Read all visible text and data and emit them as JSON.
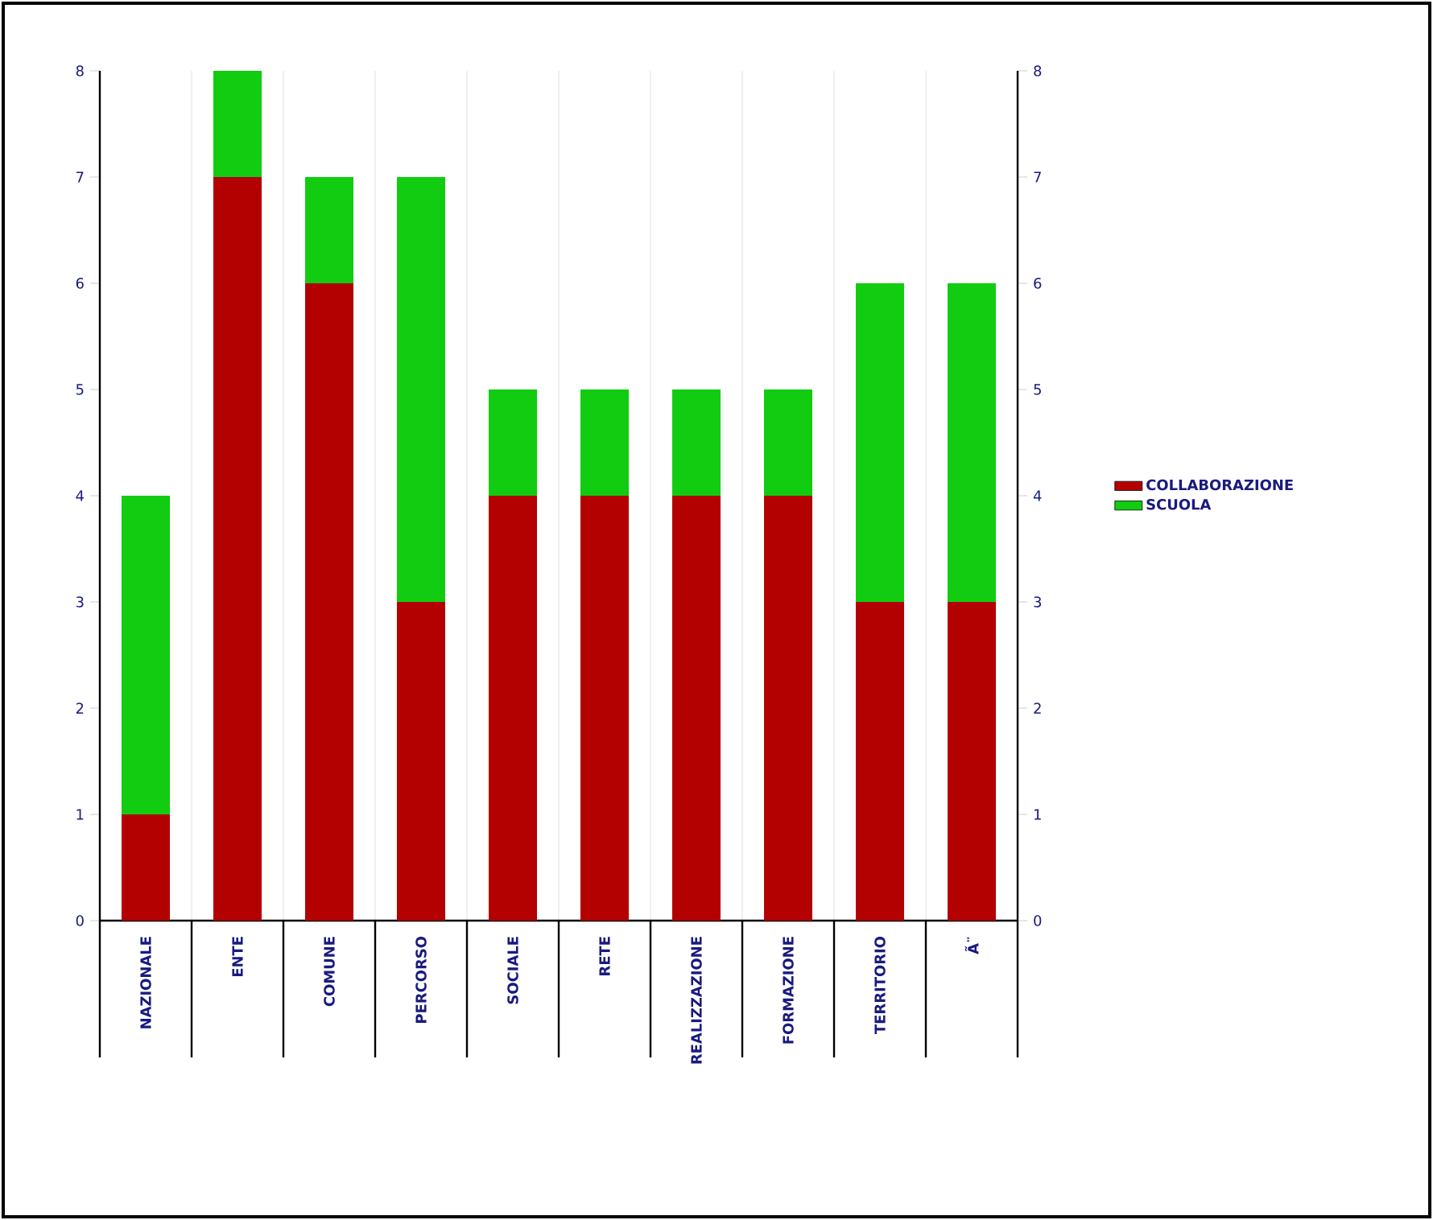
{
  "chart_data": {
    "type": "bar",
    "stacked": true,
    "categories": [
      "NAZIONALE",
      "ENTE",
      "COMUNE",
      "PERCORSO",
      "SOCIALE",
      "RETE",
      "REALIZZAZIONE",
      "FORMAZIONE",
      "TERRITORIO",
      "Ã¨"
    ],
    "series": [
      {
        "name": "COLLABORAZIONE",
        "color": "#b30000",
        "values": [
          1,
          7,
          6,
          3,
          4,
          4,
          4,
          4,
          3,
          3
        ]
      },
      {
        "name": "SCUOLA",
        "color": "#11cc11",
        "values": [
          3,
          1,
          1,
          4,
          1,
          1,
          1,
          1,
          3,
          3
        ]
      }
    ],
    "ylim": [
      0,
      8
    ],
    "yticks": [
      0,
      1,
      2,
      3,
      4,
      5,
      6,
      7,
      8
    ],
    "y2lim": [
      0,
      8
    ],
    "y2ticks": [
      0,
      1,
      2,
      3,
      4,
      5,
      6,
      7,
      8
    ],
    "grid": "x",
    "legend": "right"
  }
}
